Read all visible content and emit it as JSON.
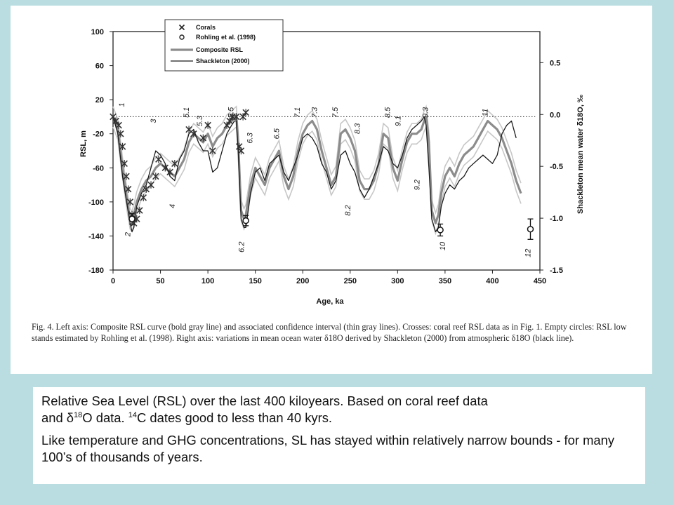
{
  "chart_data": {
    "type": "line",
    "xlabel": "Age, ka",
    "ylabel": "RSL, m",
    "y2label": "Shackleton mean water δ18O, ‰",
    "xlim": [
      0,
      450
    ],
    "ylim": [
      -180,
      100
    ],
    "y2lim": [
      -1.5,
      0.8
    ],
    "x_ticks": [
      "0",
      "50",
      "100",
      "150",
      "200",
      "250",
      "300",
      "350",
      "400",
      "450"
    ],
    "y_ticks": [
      "100",
      "60",
      "20",
      "-20",
      "-60",
      "-100",
      "-140",
      "-180"
    ],
    "y2_ticks": [
      "0.5",
      "0.0",
      "-0.5",
      "-1.0",
      "-1.5"
    ],
    "grid": false,
    "legend_position": "top-left",
    "reference_line_y": 0,
    "legend": [
      "Corals",
      "Rohling et al. (1998)",
      "Composite RSL",
      "Shackleton (2000)"
    ],
    "series": [
      {
        "name": "Composite RSL",
        "color": "#8c8c8c",
        "x": [
          0,
          5,
          10,
          15,
          18,
          20,
          22,
          25,
          30,
          35,
          40,
          45,
          50,
          55,
          60,
          65,
          70,
          75,
          80,
          85,
          90,
          95,
          100,
          105,
          110,
          115,
          120,
          125,
          128,
          130,
          132,
          135,
          138,
          140,
          145,
          150,
          155,
          160,
          165,
          170,
          175,
          180,
          185,
          190,
          195,
          200,
          205,
          210,
          215,
          220,
          225,
          230,
          235,
          240,
          245,
          250,
          255,
          260,
          265,
          270,
          275,
          280,
          285,
          290,
          295,
          300,
          305,
          310,
          315,
          320,
          325,
          328,
          330,
          333,
          336,
          340,
          343,
          346,
          350,
          355,
          360,
          365,
          370,
          375,
          380,
          385,
          390,
          395,
          400,
          405,
          410,
          415,
          420,
          425,
          430
        ],
        "y": [
          0,
          -15,
          -60,
          -100,
          -120,
          -123,
          -115,
          -100,
          -85,
          -75,
          -70,
          -60,
          -55,
          -60,
          -65,
          -70,
          -60,
          -50,
          -30,
          -20,
          -25,
          -30,
          -20,
          -35,
          -25,
          -20,
          -10,
          -5,
          -2,
          0,
          -30,
          -110,
          -120,
          -115,
          -80,
          -60,
          -70,
          -80,
          -60,
          -50,
          -40,
          -70,
          -85,
          -70,
          -40,
          -20,
          -10,
          -5,
          -15,
          -40,
          -60,
          -80,
          -70,
          -20,
          -15,
          -25,
          -40,
          -75,
          -85,
          -85,
          -75,
          -55,
          -20,
          -25,
          -60,
          -75,
          -50,
          -30,
          -20,
          -20,
          -15,
          -5,
          0,
          -30,
          -110,
          -125,
          -115,
          -90,
          -70,
          -60,
          -70,
          -55,
          -45,
          -40,
          -35,
          -25,
          -15,
          -5,
          -10,
          -15,
          -25,
          -40,
          -55,
          -75,
          -90
        ]
      },
      {
        "name": "Shackleton (2000)",
        "color": "#1a1a1a",
        "x": [
          0,
          5,
          10,
          15,
          18,
          20,
          22,
          25,
          30,
          35,
          40,
          45,
          50,
          55,
          60,
          65,
          70,
          75,
          80,
          85,
          90,
          95,
          100,
          105,
          110,
          115,
          120,
          125,
          128,
          130,
          132,
          135,
          138,
          140,
          145,
          150,
          155,
          160,
          165,
          170,
          175,
          180,
          185,
          190,
          195,
          200,
          205,
          210,
          215,
          220,
          225,
          230,
          235,
          240,
          245,
          250,
          255,
          260,
          265,
          270,
          275,
          280,
          285,
          290,
          295,
          300,
          305,
          310,
          315,
          320,
          325,
          328,
          330,
          333,
          336,
          340,
          343,
          346,
          350,
          355,
          360,
          365,
          370,
          375,
          380,
          385,
          390,
          395,
          400,
          405,
          410,
          415,
          420,
          425,
          430
        ],
        "y": [
          0,
          -20,
          -70,
          -105,
          -125,
          -135,
          -130,
          -105,
          -90,
          -80,
          -60,
          -40,
          -45,
          -55,
          -70,
          -75,
          -50,
          -40,
          -20,
          -15,
          -30,
          -40,
          -40,
          -65,
          -60,
          -40,
          -20,
          -10,
          -5,
          -5,
          -40,
          -120,
          -130,
          -130,
          -90,
          -65,
          -60,
          -75,
          -55,
          -50,
          -45,
          -65,
          -75,
          -60,
          -45,
          -25,
          -20,
          -25,
          -35,
          -55,
          -65,
          -85,
          -75,
          -45,
          -40,
          -55,
          -65,
          -85,
          -95,
          -85,
          -70,
          -55,
          -35,
          -40,
          -55,
          -60,
          -45,
          -25,
          -15,
          -10,
          -5,
          0,
          -10,
          -60,
          -120,
          -135,
          -130,
          -105,
          -90,
          -80,
          -85,
          -75,
          -70,
          -60,
          -55,
          -50,
          -45,
          -50,
          -55,
          -45,
          -20,
          -10,
          -5,
          -25,
          null
        ]
      },
      {
        "name": "Corals",
        "color": "#333333",
        "x": [
          0,
          3,
          6,
          8,
          10,
          12,
          14,
          16,
          18,
          20,
          22,
          25,
          28,
          32,
          35,
          40,
          45,
          48,
          55,
          60,
          65,
          80,
          85,
          95,
          100,
          105,
          120,
          123,
          126,
          130,
          133,
          135,
          137,
          140
        ],
        "y": [
          0,
          -5,
          -10,
          -20,
          -35,
          -55,
          -70,
          -85,
          -100,
          -115,
          -125,
          -120,
          -110,
          -95,
          -85,
          -80,
          -70,
          -50,
          -60,
          -65,
          -55,
          -15,
          -20,
          -25,
          -10,
          -40,
          -10,
          -5,
          0,
          0,
          -35,
          -40,
          0,
          5
        ]
      },
      {
        "name": "Rohling et al. (1998)",
        "color": "#111111",
        "x": [
          20,
          140,
          345,
          440
        ],
        "y": [
          -120,
          -122,
          -133,
          -132
        ],
        "err": [
          6,
          6,
          7,
          12
        ]
      }
    ],
    "mis_labels": [
      "1",
      "2",
      "3",
      "4",
      "5.1",
      "5.3",
      "5.5",
      "6.2",
      "6.3",
      "6.5",
      "7.1",
      "7.3",
      "7.5",
      "8.2",
      "8.3",
      "8.5",
      "9.1",
      "9.2",
      "9.3",
      "10",
      "11",
      "12"
    ]
  },
  "figure_caption": "Fig. 4.  Left axis: Composite RSL curve (bold gray line) and associated confidence interval (thin gray lines). Crosses: coral reef RSL data as in Fig. 1. Empty circles: RSL low stands estimated by Rohling et al. (1998). Right axis: variations in mean ocean water δ18O derived by Shackleton (2000) from atmospheric δ18O (black line).",
  "text_box": {
    "line1_a": "Relative Sea Level (RSL) over the last 400 kiloyears.  Based on coral reef data",
    "line1_b": "and ",
    "delta": "δ",
    "sup18": "18",
    "line1_c": "O data.  ",
    "sup14": "14",
    "line1_d": "C dates good to less than 40 kyrs.",
    "paragraph2": "Like temperature and GHG concentrations, SL has stayed within relatively narrow bounds - for many 100’s of thousands of years."
  }
}
